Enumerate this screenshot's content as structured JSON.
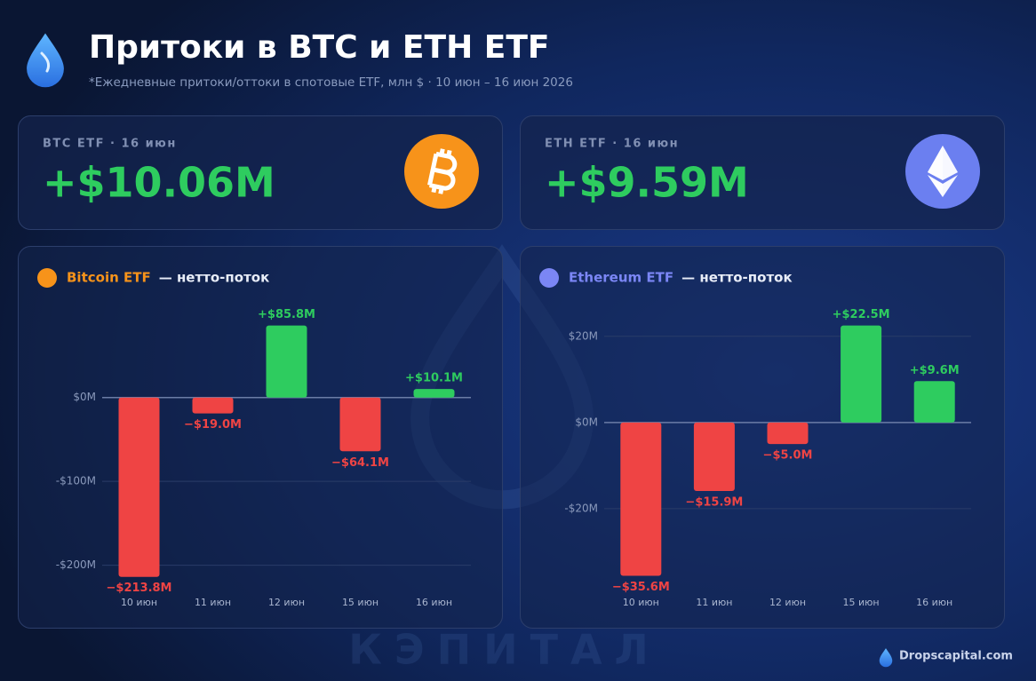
{
  "header": {
    "title": "Притоки в BTC и ETH ETF",
    "subtitle": "*Ежедневные притоки/оттоки в спотовые ETF, млн $ · 10 июн – 16 июн 2026"
  },
  "cards": [
    {
      "label": "BTC ETF · 16 июн",
      "value": "+$10.06M"
    },
    {
      "label": "ETH ETF · 16 июн",
      "value": "+$9.59M"
    }
  ],
  "chart_data": [
    {
      "type": "bar",
      "title": "Bitcoin ETF",
      "subtitle": "— нетто-поток",
      "title_color": "#f7931a",
      "categories": [
        "10 июн",
        "11 июн",
        "12 июн",
        "15 июн",
        "16 июн"
      ],
      "values": [
        -213.8,
        -19.0,
        85.8,
        -64.1,
        10.1
      ],
      "value_labels": [
        "−$213.8M",
        "−$19.0M",
        "+$85.8M",
        "−$64.1M",
        "+$10.1M"
      ],
      "positive_color": "#2ecc5f",
      "negative_color": "#ef4444",
      "ylim": [
        -230,
        114
      ],
      "yticks": [
        {
          "value": 0,
          "label": "$0M"
        },
        {
          "value": -100,
          "label": "-$100M"
        },
        {
          "value": -200,
          "label": "-$200M"
        }
      ],
      "grid": true
    },
    {
      "type": "bar",
      "title": "Ethereum ETF",
      "subtitle": "— нетто-поток",
      "title_color": "#7b86f5",
      "categories": [
        "10 июн",
        "11 июн",
        "12 июн",
        "15 июн",
        "16 июн"
      ],
      "values": [
        -35.6,
        -15.9,
        -5.0,
        22.5,
        9.6
      ],
      "value_labels": [
        "−$35.6M",
        "−$15.9M",
        "−$5.0M",
        "+$22.5M",
        "+$9.6M"
      ],
      "positive_color": "#2ecc5f",
      "negative_color": "#ef4444",
      "ylim": [
        -39,
        28
      ],
      "yticks": [
        {
          "value": 20,
          "label": "$20M"
        },
        {
          "value": 0,
          "label": "$0M"
        },
        {
          "value": -20,
          "label": "-$20M"
        }
      ],
      "grid": true
    }
  ],
  "watermark": "КЭПИТАЛ",
  "footer": "Dropscapital.com"
}
